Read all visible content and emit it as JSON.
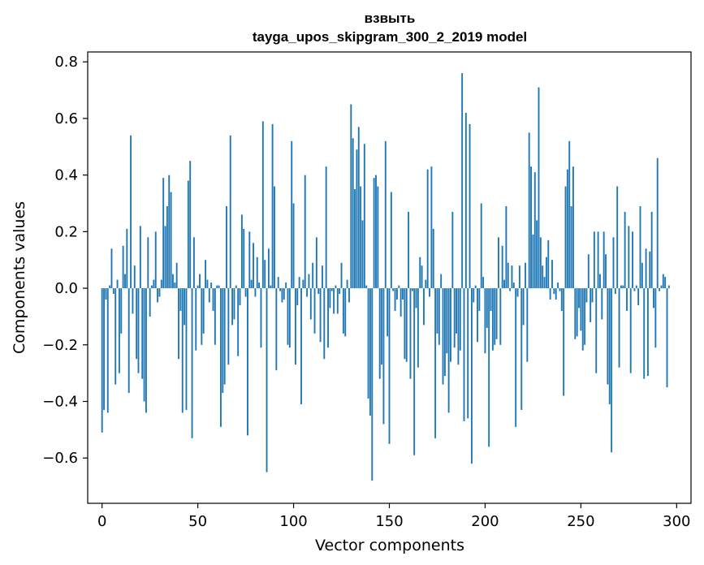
{
  "chart_data": {
    "type": "bar",
    "title": "взвыть",
    "subtitle": "tayga_upos_skipgram_300_2_2019 model",
    "xlabel": "Vector components",
    "ylabel": "Components values",
    "xlim": [
      -7.5,
      307.5
    ],
    "ylim": [
      -0.76,
      0.835
    ],
    "xticks": [
      0,
      50,
      100,
      150,
      200,
      250,
      300
    ],
    "xtick_labels": [
      "0",
      "50",
      "100",
      "150",
      "200",
      "250",
      "300"
    ],
    "yticks": [
      -0.6,
      -0.4,
      -0.2,
      0.0,
      0.2,
      0.4,
      0.6,
      0.8
    ],
    "ytick_labels": [
      "−0.6",
      "−0.4",
      "−0.2",
      "0.0",
      "0.2",
      "0.4",
      "0.6",
      "0.8"
    ],
    "grid": false,
    "legend": false,
    "bar_color": "#1f77b4",
    "values": [
      -0.51,
      -0.43,
      -0.04,
      -0.44,
      0.01,
      0.14,
      -0.02,
      -0.34,
      0.03,
      -0.3,
      -0.16,
      0.15,
      0.05,
      0.21,
      -0.37,
      0.54,
      -0.09,
      0.08,
      -0.25,
      -0.3,
      0.22,
      -0.32,
      -0.4,
      -0.44,
      0.18,
      -0.1,
      0.01,
      0.03,
      0.2,
      -0.05,
      -0.03,
      0.03,
      0.39,
      0.22,
      0.29,
      0.4,
      0.34,
      0.05,
      0.02,
      0.09,
      -0.25,
      -0.08,
      -0.44,
      -0.13,
      -0.43,
      0.38,
      0.45,
      -0.53,
      0.18,
      -0.22,
      0.01,
      0.05,
      -0.2,
      -0.16,
      0.1,
      0.03,
      -0.05,
      0.02,
      -0.08,
      -0.2,
      0.01,
      0.01,
      -0.49,
      -0.37,
      -0.34,
      0.29,
      -0.27,
      0.54,
      -0.13,
      -0.11,
      0.01,
      -0.24,
      -0.06,
      0.26,
      0.21,
      -0.03,
      -0.52,
      0.2,
      0.03,
      0.16,
      -0.03,
      0.11,
      0.02,
      -0.21,
      0.59,
      0.1,
      -0.65,
      0.14,
      0.01,
      0.58,
      0.36,
      -0.29,
      0.04,
      -0.01,
      -0.05,
      -0.04,
      0.02,
      -0.2,
      -0.21,
      0.52,
      0.3,
      -0.27,
      -0.06,
      0.04,
      -0.41,
      0.03,
      0.4,
      -0.03,
      0.05,
      -0.11,
      0.09,
      -0.16,
      0.18,
      -0.02,
      -0.19,
      0.08,
      -0.25,
      0.43,
      -0.21,
      -0.07,
      -0.01,
      -0.09,
      0.01,
      -0.09,
      -0.02,
      0.09,
      -0.16,
      -0.17,
      0.03,
      -0.05,
      0.65,
      0.53,
      0.35,
      0.49,
      0.57,
      0.36,
      0.24,
      0.51,
      0.01,
      -0.39,
      -0.45,
      -0.68,
      0.39,
      0.4,
      0.36,
      -0.32,
      -0.27,
      -0.48,
      0.52,
      -0.17,
      -0.55,
      0.34,
      -0.01,
      -0.08,
      -0.04,
      0.01,
      -0.1,
      -0.04,
      -0.25,
      -0.26,
      0.27,
      -0.32,
      -0.01,
      -0.59,
      -0.07,
      -0.28,
      0.11,
      0.08,
      -0.13,
      0.03,
      0.42,
      -0.03,
      0.43,
      0.21,
      -0.53,
      -0.16,
      -0.2,
      0.05,
      -0.34,
      -0.31,
      -0.23,
      -0.44,
      -0.26,
      0.27,
      -0.21,
      -0.16,
      -0.27,
      -0.22,
      0.76,
      -0.47,
      0.62,
      -0.46,
      0.58,
      -0.62,
      -0.05,
      0.01,
      -0.19,
      -0.08,
      0.3,
      0.04,
      -0.23,
      -0.14,
      -0.56,
      -0.08,
      -0.22,
      -0.2,
      -0.18,
      0.18,
      -0.2,
      0.15,
      0.03,
      0.29,
      0.09,
      -0.01,
      0.08,
      0.02,
      -0.49,
      -0.03,
      0.08,
      -0.43,
      -0.13,
      0.09,
      -0.26,
      0.55,
      0.43,
      0.19,
      0.41,
      0.24,
      0.71,
      0.18,
      0.08,
      0.04,
      0.11,
      0.17,
      -0.04,
      0.1,
      -0.02,
      -0.04,
      0.02,
      -0.01,
      -0.08,
      -0.38,
      0.36,
      0.42,
      0.52,
      0.29,
      0.43,
      -0.18,
      -0.17,
      -0.07,
      -0.15,
      -0.22,
      -0.2,
      -0.05,
      0.12,
      -0.12,
      -0.05,
      0.2,
      -0.3,
      0.2,
      0.05,
      -0.11,
      0.2,
      0.12,
      -0.34,
      -0.41,
      -0.58,
      0.18,
      -0.02,
      0.36,
      -0.28,
      0.01,
      0.01,
      0.27,
      -0.08,
      0.22,
      -0.3,
      0.2,
      -0.01,
      0.01,
      -0.06,
      0.29,
      0.09,
      -0.32,
      0.14,
      -0.31,
      0.13,
      0.27,
      -0.07,
      -0.21,
      0.46,
      -0.01,
      0.01,
      0.05,
      0.04,
      -0.35,
      0.01
    ]
  }
}
